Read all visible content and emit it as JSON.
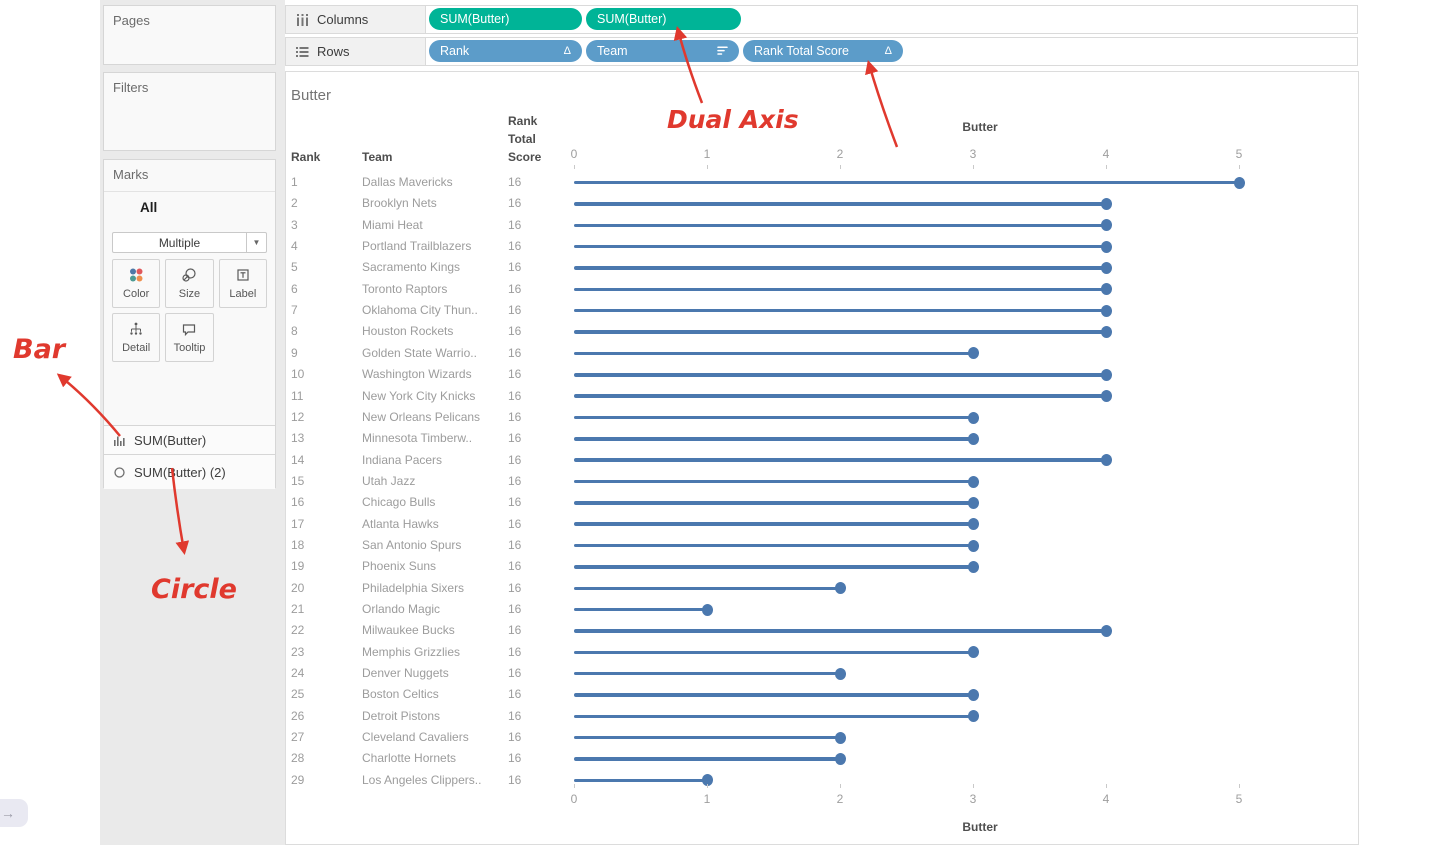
{
  "shelves": {
    "columns_label": "Columns",
    "rows_label": "Rows",
    "columns_pills": [
      {
        "label": "SUM(Butter)"
      },
      {
        "label": "SUM(Butter)"
      }
    ],
    "rows_pills": [
      {
        "label": "Rank",
        "icon": "delta"
      },
      {
        "label": "Team",
        "icon": "sort"
      },
      {
        "label": "Rank Total Score",
        "icon": "delta"
      }
    ],
    "pill_colors": {
      "measure_green": "#00b497",
      "dimension_blue": "#5c9cc9"
    }
  },
  "sidebar": {
    "pages_title": "Pages",
    "filters_title": "Filters",
    "marks_title": "Marks",
    "marks_scope": "All",
    "mark_type_selector": "Multiple",
    "mark_buttons": [
      {
        "name": "color",
        "label": "Color"
      },
      {
        "name": "size",
        "label": "Size"
      },
      {
        "name": "label",
        "label": "Label"
      },
      {
        "name": "detail",
        "label": "Detail"
      },
      {
        "name": "tooltip",
        "label": "Tooltip"
      }
    ],
    "mark_fields": [
      {
        "icon": "bar-chart-icon",
        "label": "SUM(Butter)"
      },
      {
        "icon": "circle-icon",
        "label": "SUM(Butter) (2)"
      }
    ]
  },
  "annotations": {
    "bar_label": "Bar",
    "circle_label": "Circle",
    "dual_axis_label": "Dual Axis",
    "color": "#e0392e"
  },
  "nav": {
    "arrow": "→"
  },
  "chart_data": {
    "type": "bar",
    "subtype": "lollipop-dual-axis",
    "title": "Butter",
    "table_headers": {
      "rank": "Rank",
      "team": "Team",
      "score": "Rank Total Score"
    },
    "axis": {
      "title": "Butter",
      "min": 0,
      "max": 5,
      "ticks": [
        0,
        1,
        2,
        3,
        4,
        5
      ],
      "position": "top-and-bottom"
    },
    "mark_color": "#4b78ae",
    "rows": [
      {
        "rank": 1,
        "team": "Dallas Mavericks",
        "rank_total_score": 16,
        "butter": 5
      },
      {
        "rank": 2,
        "team": "Brooklyn Nets",
        "rank_total_score": 16,
        "butter": 4
      },
      {
        "rank": 3,
        "team": "Miami Heat",
        "rank_total_score": 16,
        "butter": 4
      },
      {
        "rank": 4,
        "team": "Portland Trailblazers",
        "rank_total_score": 16,
        "butter": 4
      },
      {
        "rank": 5,
        "team": "Sacramento Kings",
        "rank_total_score": 16,
        "butter": 4
      },
      {
        "rank": 6,
        "team": "Toronto Raptors",
        "rank_total_score": 16,
        "butter": 4
      },
      {
        "rank": 7,
        "team": "Oklahoma City Thun..",
        "rank_total_score": 16,
        "butter": 4
      },
      {
        "rank": 8,
        "team": "Houston Rockets",
        "rank_total_score": 16,
        "butter": 4
      },
      {
        "rank": 9,
        "team": "Golden State Warrio..",
        "rank_total_score": 16,
        "butter": 3
      },
      {
        "rank": 10,
        "team": "Washington Wizards",
        "rank_total_score": 16,
        "butter": 4
      },
      {
        "rank": 11,
        "team": "New York City Knicks",
        "rank_total_score": 16,
        "butter": 4
      },
      {
        "rank": 12,
        "team": "New Orleans Pelicans",
        "rank_total_score": 16,
        "butter": 3
      },
      {
        "rank": 13,
        "team": "Minnesota Timberw..",
        "rank_total_score": 16,
        "butter": 3
      },
      {
        "rank": 14,
        "team": "Indiana Pacers",
        "rank_total_score": 16,
        "butter": 4
      },
      {
        "rank": 15,
        "team": "Utah Jazz",
        "rank_total_score": 16,
        "butter": 3
      },
      {
        "rank": 16,
        "team": "Chicago Bulls",
        "rank_total_score": 16,
        "butter": 3
      },
      {
        "rank": 17,
        "team": "Atlanta Hawks",
        "rank_total_score": 16,
        "butter": 3
      },
      {
        "rank": 18,
        "team": "San Antonio Spurs",
        "rank_total_score": 16,
        "butter": 3
      },
      {
        "rank": 19,
        "team": "Phoenix Suns",
        "rank_total_score": 16,
        "butter": 3
      },
      {
        "rank": 20,
        "team": "Philadelphia Sixers",
        "rank_total_score": 16,
        "butter": 2
      },
      {
        "rank": 21,
        "team": "Orlando Magic",
        "rank_total_score": 16,
        "butter": 1
      },
      {
        "rank": 22,
        "team": "Milwaukee Bucks",
        "rank_total_score": 16,
        "butter": 4
      },
      {
        "rank": 23,
        "team": "Memphis Grizzlies",
        "rank_total_score": 16,
        "butter": 3
      },
      {
        "rank": 24,
        "team": "Denver Nuggets",
        "rank_total_score": 16,
        "butter": 2
      },
      {
        "rank": 25,
        "team": "Boston Celtics",
        "rank_total_score": 16,
        "butter": 3
      },
      {
        "rank": 26,
        "team": "Detroit Pistons",
        "rank_total_score": 16,
        "butter": 3
      },
      {
        "rank": 27,
        "team": "Cleveland Cavaliers",
        "rank_total_score": 16,
        "butter": 2
      },
      {
        "rank": 28,
        "team": "Charlotte Hornets",
        "rank_total_score": 16,
        "butter": 2
      },
      {
        "rank": 29,
        "team": "Los Angeles Clippers..",
        "rank_total_score": 16,
        "butter": 1
      }
    ]
  }
}
